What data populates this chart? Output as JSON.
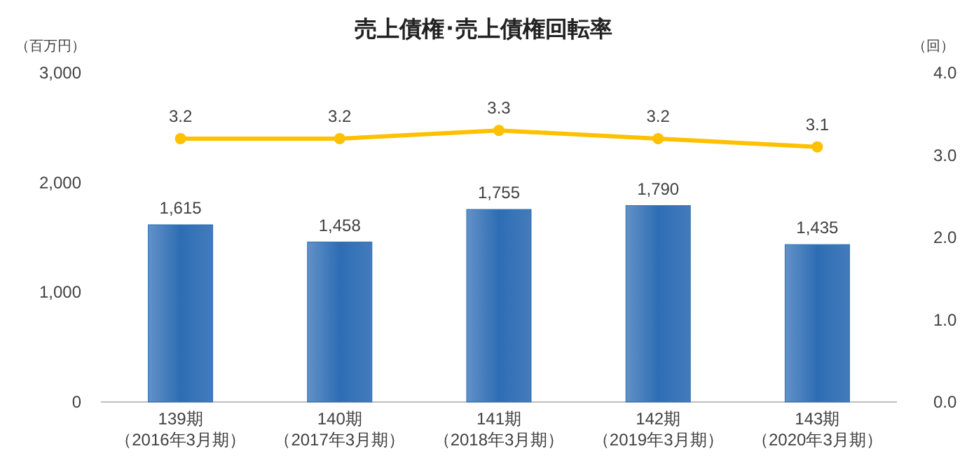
{
  "chart_data": {
    "type": "bar",
    "title": "売上債権･売上債権回転率",
    "ylabel": "（百万円）",
    "y2label": "（回）",
    "categories": [
      "139期（2016年3月期）",
      "140期（2017年3月期）",
      "141期（2018年3月期）",
      "142期（2019年3月期）",
      "143期（2020年3月期）"
    ],
    "series": [
      {
        "color": "#2e6db4",
        "values": [
          1615,
          1458,
          1755,
          1790,
          1435
        ],
        "value_labels": [
          "1,615",
          "1,458",
          "1,755",
          "1,790",
          "1,435"
        ]
      },
      {
        "type": "line",
        "axis": "y2",
        "color": "#ffc000",
        "marker": "circle",
        "values": [
          3.2,
          3.2,
          3.3,
          3.2,
          3.1
        ],
        "value_labels": [
          "3.2",
          "3.2",
          "3.3",
          "3.2",
          "3.1"
        ]
      }
    ],
    "ylim": [
      0,
      3000
    ],
    "yticks": [
      0,
      {
        "value": 1000,
        "label": "1,000"
      },
      {
        "value": 2000,
        "label": "2,000"
      },
      {
        "value": 3000,
        "label": "3,000"
      }
    ],
    "y2lim": [
      0,
      4
    ],
    "y2ticks": [
      {
        "value": 0,
        "label": "0.0"
      },
      {
        "value": 1,
        "label": "1.0"
      },
      {
        "value": 2,
        "label": "2.0"
      },
      {
        "value": 3,
        "label": "3.0"
      },
      {
        "value": 4,
        "label": "4.0"
      }
    ],
    "grid": false
  }
}
